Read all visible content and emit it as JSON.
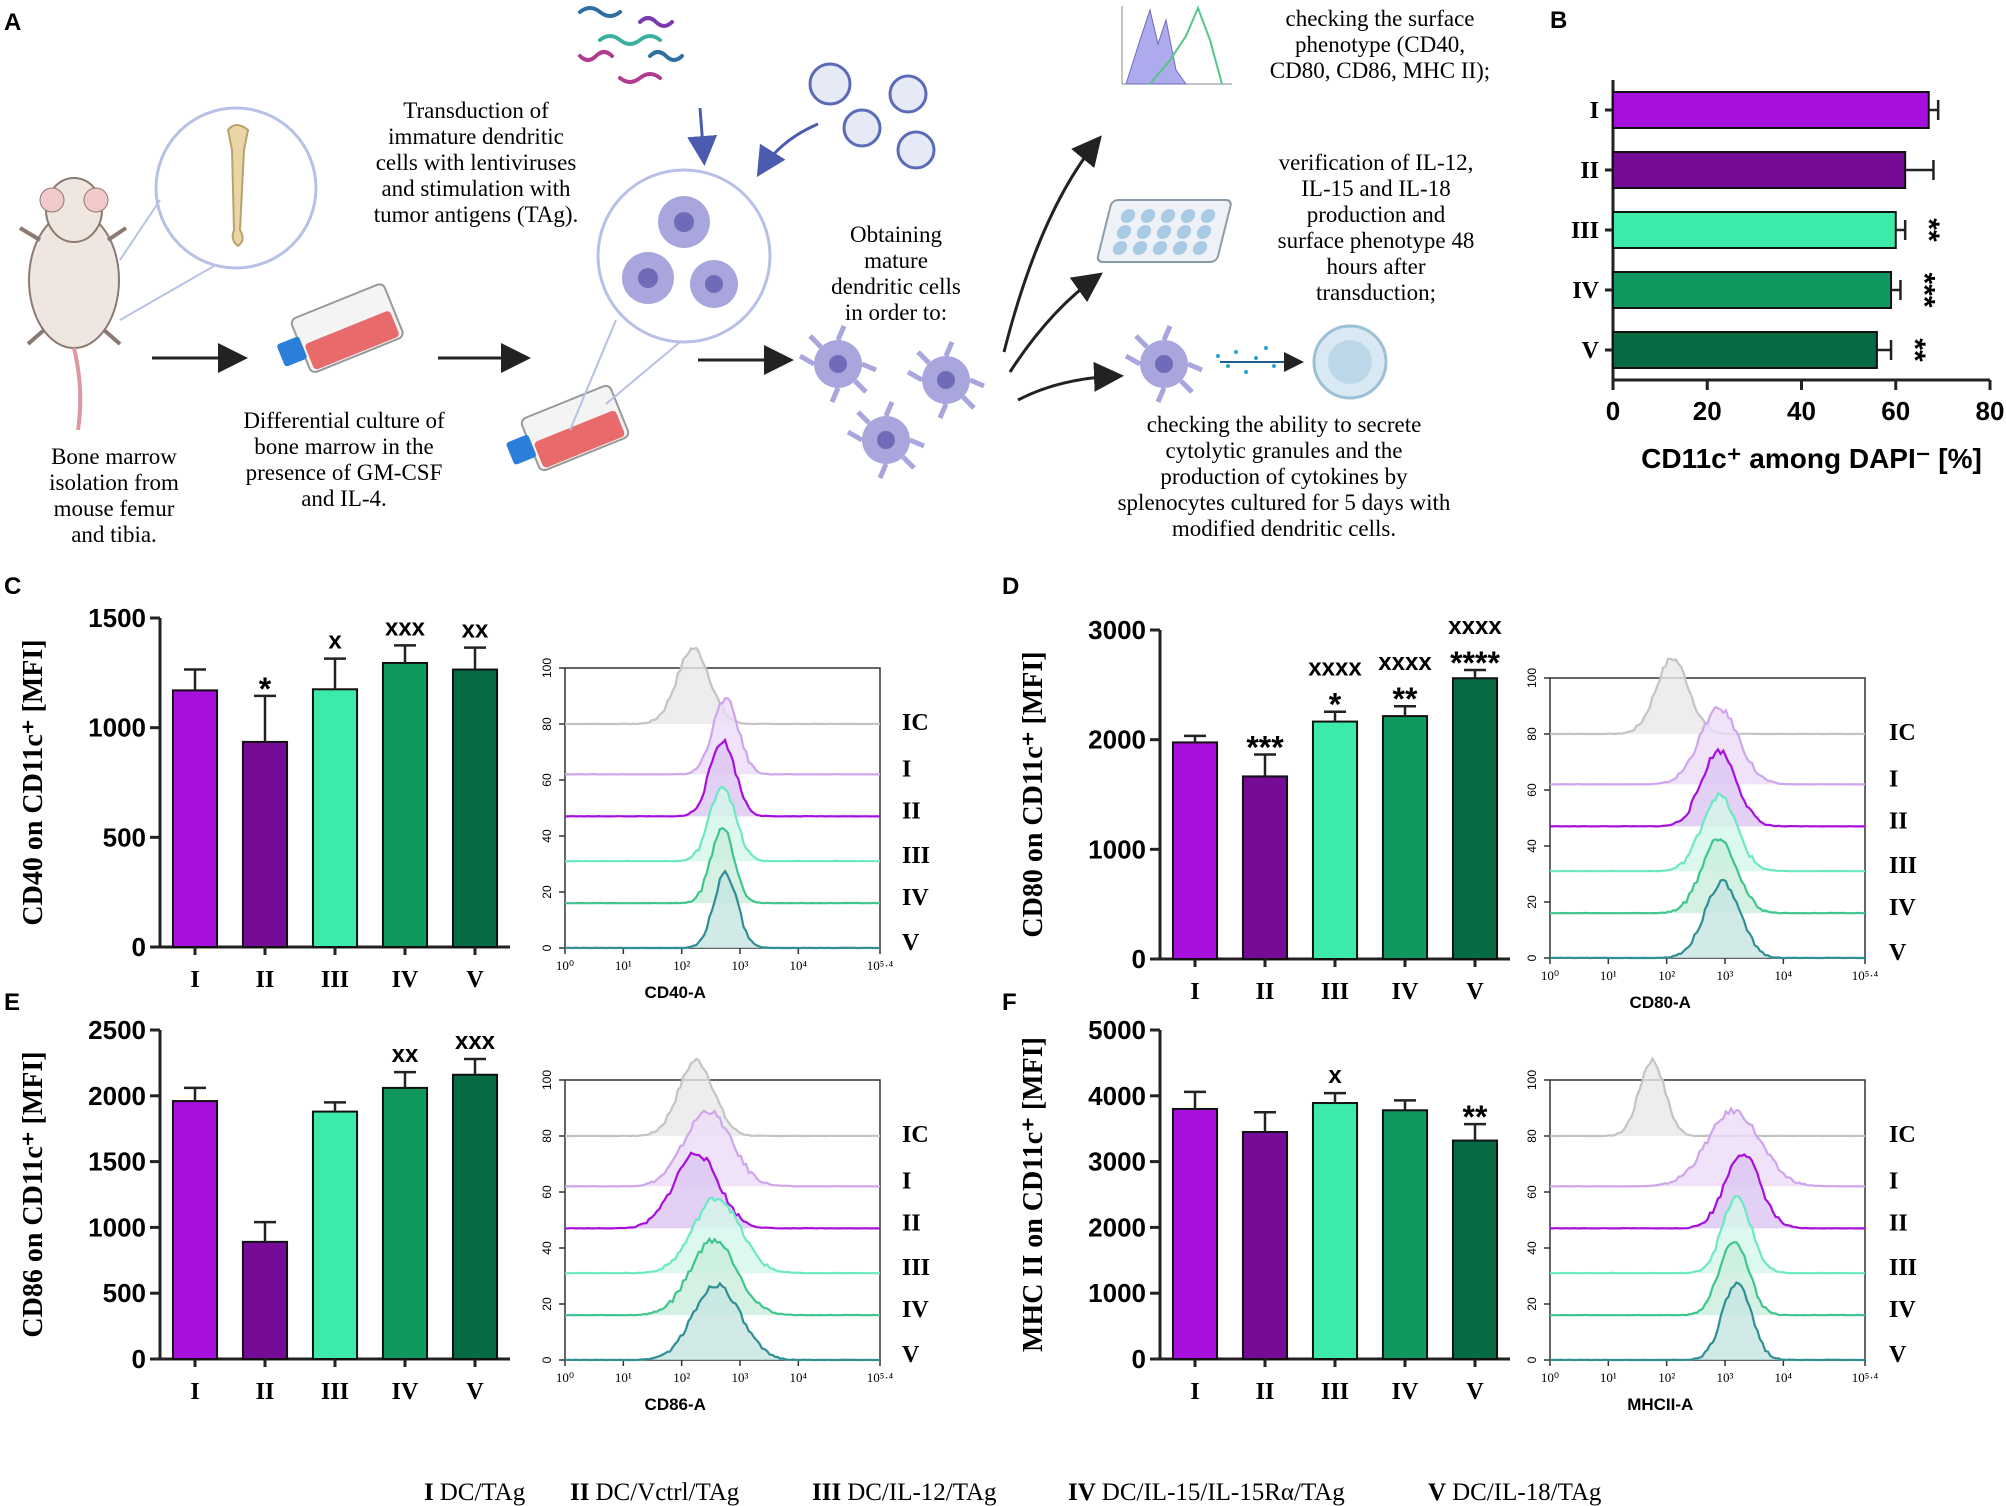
{
  "colors": {
    "I": "#a70fdc",
    "II": "#760b98",
    "III": "#3cebaa",
    "IV": "#10985f",
    "V": "#066b43",
    "IC_line": "#c4c4c4",
    "arrow": "#222222",
    "cell": "#a8a6dc",
    "circle": "#b7c1e6",
    "flask": "#e86a6a",
    "cap": "#2c7fd8"
  },
  "panels": {
    "A": {
      "label": "A",
      "texts": {
        "bone_marrow": [
          "Bone marrow",
          "isolation from",
          "mouse femur",
          "and tibia."
        ],
        "culture": [
          "Differential culture of",
          "bone marrow in the",
          "presence of GM-CSF",
          "and IL-4."
        ],
        "transduction": [
          "Transduction of",
          "immature dendritic",
          "cells with lentiviruses",
          "and stimulation with",
          "tumor antigens (TAg)."
        ],
        "obtaining": [
          "Obtaining",
          "mature",
          "dendritic cells",
          "in order to:"
        ],
        "surface": [
          "checking the surface",
          "phenotype (CD40,",
          "CD80, CD86, MHC II);"
        ],
        "verification": [
          "verification of IL-12,",
          "IL-15 and IL-18",
          "production and",
          "surface phenotype 48",
          "hours after",
          "transduction;"
        ],
        "cytolytic": [
          "checking the ability to secrete",
          "cytolytic granules and the",
          "production of cytokines by",
          "splenocytes cultured for 5 days with",
          "modified dendritic cells."
        ]
      },
      "icons": [
        "mouse-icon",
        "bone-icon",
        "flask-icon",
        "lentivirus-icon",
        "dendritic-cell-icon",
        "histogram-thumbnail-icon",
        "well-plate-icon",
        "splenocyte-icon"
      ]
    },
    "B": {
      "label": "B"
    },
    "C": {
      "label": "C"
    },
    "D": {
      "label": "D"
    },
    "E": {
      "label": "E"
    },
    "F": {
      "label": "F"
    }
  },
  "legend": {
    "items": [
      {
        "key": "I",
        "text": "DC/TAg"
      },
      {
        "key": "II",
        "text": "DC/Vctrl/TAg"
      },
      {
        "key": "III",
        "text": "DC/IL-12/TAg"
      },
      {
        "key": "IV",
        "text": "DC/IL-15/IL-15Rα/TAg"
      },
      {
        "key": "V",
        "text": "DC/IL-18/TAg"
      }
    ]
  },
  "chart_data": [
    {
      "id": "B",
      "type": "bar",
      "orientation": "horizontal",
      "categories": [
        "I",
        "II",
        "III",
        "IV",
        "V"
      ],
      "values": [
        67,
        62,
        60,
        59,
        56
      ],
      "errors": [
        2,
        6,
        2,
        2,
        3
      ],
      "significance": [
        "",
        "",
        "**",
        "***",
        "**"
      ],
      "xlabel": "CD11c⁺ among DAPI⁻ [%]",
      "xlim": [
        0,
        80
      ],
      "xticks": [
        0,
        20,
        40,
        60,
        80
      ]
    },
    {
      "id": "C",
      "type": "bar",
      "categories": [
        "I",
        "II",
        "III",
        "IV",
        "V"
      ],
      "values": [
        1170,
        935,
        1175,
        1295,
        1265
      ],
      "errors": [
        95,
        210,
        140,
        80,
        100
      ],
      "significance": [
        "",
        "*",
        "x",
        "xxx",
        "xx"
      ],
      "ylabel": "CD40 on CD11c⁺ [MFI]",
      "ylim": [
        0,
        1500
      ],
      "yticks": [
        0,
        500,
        1000,
        1500
      ]
    },
    {
      "id": "C-hist",
      "type": "line",
      "subtype": "stacked_histogram",
      "series_labels": [
        "IC",
        "I",
        "II",
        "III",
        "IV",
        "V"
      ],
      "xlabel": "CD40-A",
      "xticks": [
        "10⁰",
        "10¹",
        "10²",
        "10³",
        "10⁴",
        "10⁵·⁴"
      ],
      "yticks": [
        0,
        20,
        40,
        60,
        80,
        100
      ],
      "peaks_log10": [
        2.2,
        2.75,
        2.7,
        2.7,
        2.7,
        2.75
      ],
      "widths": [
        0.28,
        0.22,
        0.22,
        0.22,
        0.2,
        0.2
      ]
    },
    {
      "id": "D",
      "type": "bar",
      "categories": [
        "I",
        "II",
        "III",
        "IV",
        "V"
      ],
      "values": [
        1975,
        1665,
        2165,
        2215,
        2560
      ],
      "errors": [
        60,
        200,
        90,
        90,
        75
      ],
      "significance": [
        "",
        "***",
        "*",
        "**",
        "****"
      ],
      "significance_x": [
        "",
        "",
        "xxxx",
        "xxxx",
        "xxxx"
      ],
      "ylabel": "CD80 on CD11c⁺ [MFI]",
      "ylim": [
        0,
        3000
      ],
      "yticks": [
        0,
        1000,
        2000,
        3000
      ]
    },
    {
      "id": "D-hist",
      "type": "line",
      "subtype": "stacked_histogram",
      "series_labels": [
        "IC",
        "I",
        "II",
        "III",
        "IV",
        "V"
      ],
      "xlabel": "CD80-A",
      "xticks": [
        "10⁰",
        "10¹",
        "10²",
        "10³",
        "10⁴",
        "10⁵·⁴"
      ],
      "yticks": [
        0,
        20,
        40,
        60,
        80,
        100
      ],
      "peaks_log10": [
        2.1,
        2.9,
        2.9,
        2.9,
        2.9,
        2.95
      ],
      "widths": [
        0.28,
        0.34,
        0.3,
        0.3,
        0.3,
        0.3
      ]
    },
    {
      "id": "E",
      "type": "bar",
      "categories": [
        "I",
        "II",
        "III",
        "IV",
        "V"
      ],
      "values": [
        1960,
        890,
        1880,
        2060,
        2160
      ],
      "errors": [
        100,
        150,
        70,
        120,
        120
      ],
      "significance": [
        "",
        "",
        "",
        "xx",
        "xxx"
      ],
      "ylabel": "CD86 on CD11c⁺ [MFI]",
      "ylim": [
        0,
        2500
      ],
      "yticks": [
        0,
        500,
        1000,
        1500,
        2000,
        2500
      ]
    },
    {
      "id": "E-hist",
      "type": "line",
      "subtype": "stacked_histogram",
      "series_labels": [
        "IC",
        "I",
        "II",
        "III",
        "IV",
        "V"
      ],
      "xlabel": "CD86-A",
      "xticks": [
        "10⁰",
        "10¹",
        "10²",
        "10³",
        "10⁴",
        "10⁵·⁴"
      ],
      "yticks": [
        0,
        20,
        40,
        60,
        80,
        100
      ],
      "peaks_log10": [
        2.25,
        2.45,
        2.25,
        2.6,
        2.55,
        2.6
      ],
      "widths": [
        0.3,
        0.4,
        0.38,
        0.4,
        0.4,
        0.4
      ]
    },
    {
      "id": "F",
      "type": "bar",
      "categories": [
        "I",
        "II",
        "III",
        "IV",
        "V"
      ],
      "values": [
        3800,
        3450,
        3890,
        3780,
        3320
      ],
      "errors": [
        260,
        300,
        150,
        150,
        250
      ],
      "significance": [
        "",
        "",
        "x",
        "",
        "**"
      ],
      "ylabel": "MHC II on CD11c⁺ [MFI]",
      "ylim": [
        0,
        5000
      ],
      "yticks": [
        0,
        1000,
        2000,
        3000,
        4000,
        5000
      ]
    },
    {
      "id": "F-hist",
      "type": "line",
      "subtype": "stacked_histogram",
      "series_labels": [
        "IC",
        "I",
        "II",
        "III",
        "IV",
        "V"
      ],
      "xlabel": "MHCII-A",
      "xticks": [
        "10⁰",
        "10¹",
        "10²",
        "10³",
        "10⁴",
        "10⁵·⁴"
      ],
      "yticks": [
        0,
        20,
        40,
        60,
        80,
        100
      ],
      "peaks_log10": [
        1.75,
        3.15,
        3.3,
        3.2,
        3.15,
        3.2
      ],
      "widths": [
        0.22,
        0.45,
        0.3,
        0.25,
        0.25,
        0.25
      ]
    }
  ]
}
